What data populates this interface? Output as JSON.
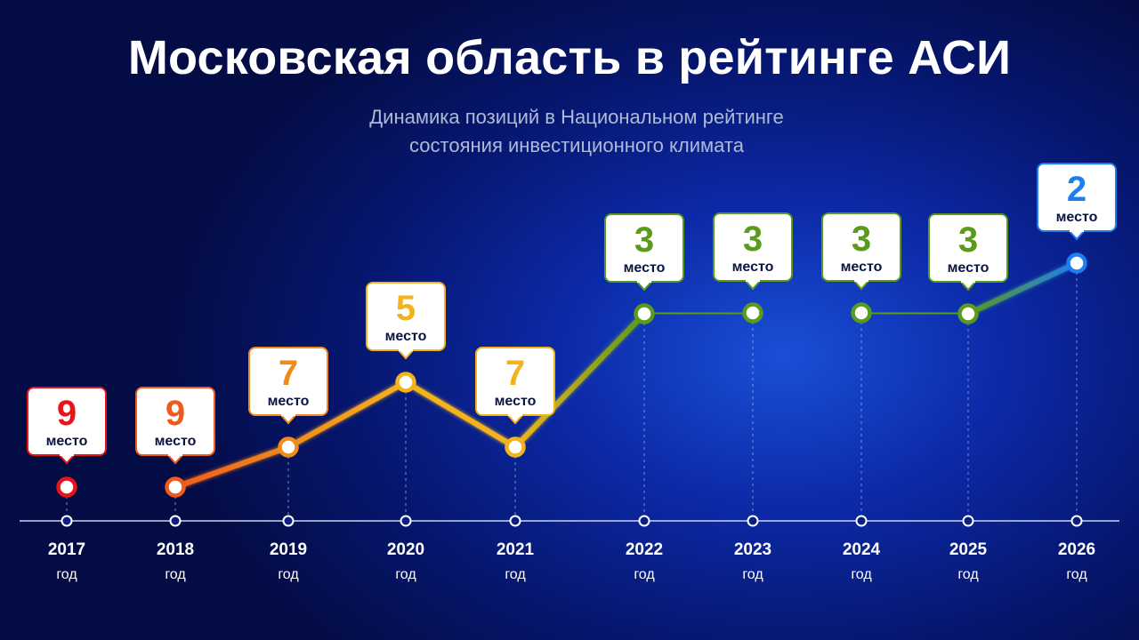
{
  "header": {
    "title": "Московская область в рейтинге АСИ",
    "subtitle_line1": "Динамика позиций в Национальном рейтинге",
    "subtitle_line2": "состояния инвестиционного климата"
  },
  "chart_data": {
    "type": "line",
    "title": "Московская область в рейтинге АСИ",
    "subtitle": "Динамика позиций в Национальном рейтинге состояния инвестиционного климата",
    "x": [
      "2017",
      "2018",
      "2019",
      "2020",
      "2021",
      "2022",
      "2023",
      "2024",
      "2025",
      "2026"
    ],
    "x_unit_label": "год",
    "values": [
      9,
      9,
      7,
      5,
      7,
      3,
      3,
      3,
      3,
      2
    ],
    "value_unit_label": "место",
    "y_inverted": true,
    "colors": [
      "#e8141c",
      "#ef5a1e",
      "#f08a1a",
      "#f2b31c",
      "#f2b31c",
      "#5a9a1c",
      "#5a9a1c",
      "#5a9a1c",
      "#5a9a1c",
      "#1e7ef0"
    ],
    "grid": false,
    "legend": "none"
  }
}
